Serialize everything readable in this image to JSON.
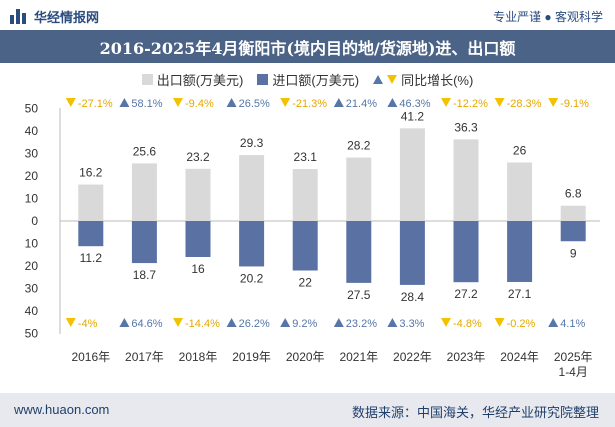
{
  "header": {
    "brand": "华经情报网",
    "tagline": "专业严谨 ● 客观科学"
  },
  "title": "2016-2025年4月衡阳市(境内目的地/货源地)进、出口额",
  "legend": {
    "export_label": "出口额(万美元)",
    "import_label": "进口额(万美元)",
    "growth_label": "同比增长(%)"
  },
  "footer": {
    "site": "www.huaon.com",
    "source": "数据来源：中国海关，华经产业研究院整理"
  },
  "colors": {
    "export": "#d9d9d9",
    "import": "#5a72a3",
    "up": "#5576a7",
    "down": "#f2c200",
    "title_bg": "#4b6387"
  },
  "chart_data": {
    "type": "bar",
    "categories": [
      "2016年",
      "2017年",
      "2018年",
      "2019年",
      "2020年",
      "2021年",
      "2022年",
      "2023年",
      "2024年",
      "2025年\n1-4月"
    ],
    "y_ticks": [
      "50",
      "40",
      "30",
      "20",
      "10",
      "0",
      "10",
      "20",
      "30",
      "40",
      "50"
    ],
    "ylim": [
      -50,
      50
    ],
    "series": [
      {
        "name": "出口额(万美元)",
        "values": [
          16.2,
          25.6,
          23.2,
          29.3,
          23.1,
          28.2,
          41.2,
          36.3,
          26,
          6.8
        ]
      },
      {
        "name": "进口额(万美元)",
        "values": [
          11.2,
          18.7,
          16,
          20.2,
          22,
          27.5,
          28.4,
          27.2,
          27.1,
          9
        ]
      }
    ],
    "export_growth": [
      "-27.1%",
      "58.1%",
      "-9.4%",
      "26.5%",
      "-21.3%",
      "21.4%",
      "46.3%",
      "-12.2%",
      "-28.3%",
      "-9.1%"
    ],
    "import_growth": [
      "-4%",
      "64.6%",
      "-14.4%",
      "26.2%",
      "9.2%",
      "23.2%",
      "3.3%",
      "-4.8%",
      "-0.2%",
      "4.1%"
    ],
    "export_labels": [
      "16.2",
      "25.6",
      "23.2",
      "29.3",
      "23.1",
      "28.2",
      "41.2",
      "36.3",
      "26",
      "6.8"
    ],
    "import_labels": [
      "11.2",
      "18.7",
      "16",
      "20.2",
      "22",
      "27.5",
      "28.4",
      "27.2",
      "27.1",
      "9"
    ]
  }
}
